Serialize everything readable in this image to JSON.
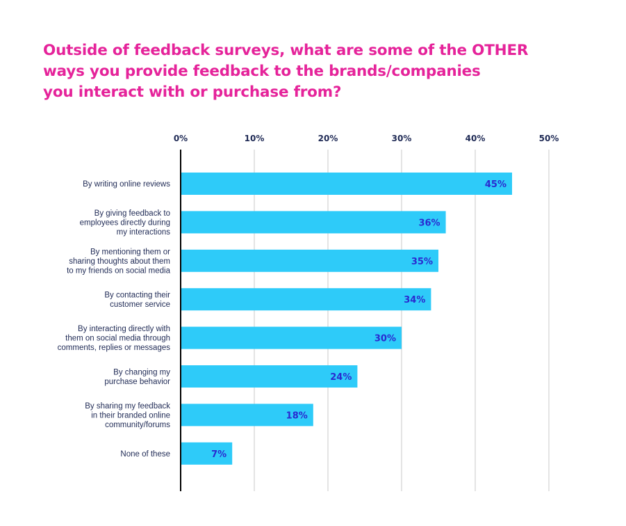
{
  "colors": {
    "title": "#e5239a",
    "bar": "#2ecbf9",
    "data_label": "#2a2ad0",
    "text": "#1f2a55",
    "grid": "#c8c8c8",
    "axis": "#000000"
  },
  "chart_data": {
    "type": "bar",
    "orientation": "horizontal",
    "title_lines": [
      "Outside of feedback surveys, what are some of the OTHER",
      "ways you provide feedback to the brands/companies",
      "you interact with or purchase from?"
    ],
    "categories": [
      [
        "By writing online reviews"
      ],
      [
        "By giving feedback to",
        "employees directly during",
        "my interactions"
      ],
      [
        "By mentioning them or",
        "sharing thoughts about them",
        "to my friends on social media"
      ],
      [
        "By contacting their",
        "customer service"
      ],
      [
        "By interacting directly with",
        "them on social media through",
        "comments, replies or messages"
      ],
      [
        "By changing my",
        "purchase behavior"
      ],
      [
        "By sharing my feedback",
        "in their branded online",
        "community/forums"
      ],
      [
        "None of these"
      ]
    ],
    "values": [
      45,
      36,
      35,
      34,
      30,
      24,
      18,
      7
    ],
    "value_labels": [
      "45%",
      "36%",
      "35%",
      "34%",
      "30%",
      "24%",
      "18%",
      "7%"
    ],
    "xlim": [
      0,
      50
    ],
    "x_ticks": [
      0,
      10,
      20,
      30,
      40,
      50
    ],
    "x_tick_labels": [
      "0%",
      "10%",
      "20%",
      "30%",
      "40%",
      "50%"
    ],
    "x_axis_position": "top",
    "grid": true,
    "legend": "none"
  }
}
